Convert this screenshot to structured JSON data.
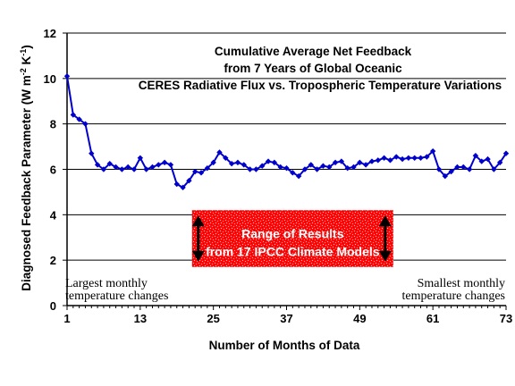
{
  "chart_data": {
    "type": "line",
    "title_lines": [
      "Cumulative Average Net Feedback",
      "from 7 Years of Global Oceanic",
      "CERES Radiative Flux vs. Tropospheric Temperature Variations"
    ],
    "xlabel": "Number of Months of Data",
    "ylabel": "Diagnosed Feedback Parameter (W m",
    "ylabel_sup1": "-2",
    "ylabel_mid": " K",
    "ylabel_sup2": "-1",
    "ylabel_end": ")",
    "xlim": [
      1,
      73
    ],
    "ylim": [
      0,
      12
    ],
    "x_ticks": [
      1,
      13,
      25,
      37,
      49,
      61,
      73
    ],
    "y_ticks": [
      0,
      2,
      4,
      6,
      8,
      10,
      12
    ],
    "grid": "horizontal",
    "line_color": "#0000cc",
    "marker": "diamond",
    "series": [
      {
        "x": [
          1,
          2,
          3,
          4,
          5,
          6,
          7,
          8,
          9,
          10,
          11,
          12,
          13,
          14,
          15,
          16,
          17,
          18,
          19,
          20,
          21,
          22,
          23,
          24,
          25,
          26,
          27,
          28,
          29,
          30,
          31,
          32,
          33,
          34,
          35,
          36,
          37,
          38,
          39,
          40,
          41,
          42,
          43,
          44,
          45,
          46,
          47,
          48,
          49,
          50,
          51,
          52,
          53,
          54,
          55,
          56,
          57,
          58,
          59,
          60,
          61,
          62,
          63,
          64,
          65,
          66,
          67,
          68,
          69,
          70,
          71,
          72,
          73
        ],
        "values": [
          10.1,
          8.4,
          8.2,
          8.0,
          6.7,
          6.2,
          6.0,
          6.25,
          6.1,
          6.0,
          6.1,
          6.0,
          6.5,
          6.0,
          6.1,
          6.2,
          6.3,
          6.2,
          5.35,
          5.2,
          5.5,
          5.9,
          5.85,
          6.05,
          6.3,
          6.75,
          6.5,
          6.25,
          6.3,
          6.2,
          6.0,
          6.0,
          6.15,
          6.35,
          6.3,
          6.1,
          6.05,
          5.85,
          5.7,
          6.0,
          6.2,
          6.0,
          6.15,
          6.1,
          6.3,
          6.35,
          6.05,
          6.1,
          6.3,
          6.2,
          6.35,
          6.4,
          6.5,
          6.4,
          6.55,
          6.45,
          6.5,
          6.5,
          6.5,
          6.55,
          6.8,
          6.0,
          5.7,
          5.9,
          6.1,
          6.1,
          6.0,
          6.6,
          6.35,
          6.45,
          6.0,
          6.3,
          6.7
        ]
      }
    ],
    "annotations": {
      "range_box": {
        "y_range": [
          1.7,
          4.2
        ],
        "x_range": [
          21.5,
          54.5
        ],
        "color": "#ff0000",
        "text_line1": "Range of Results",
        "text_line2": "from 17 IPCC Climate Models"
      },
      "left_note": [
        "Largest monthly",
        "temperature changes"
      ],
      "right_note": [
        "Smallest monthly",
        "temperature changes"
      ]
    }
  }
}
